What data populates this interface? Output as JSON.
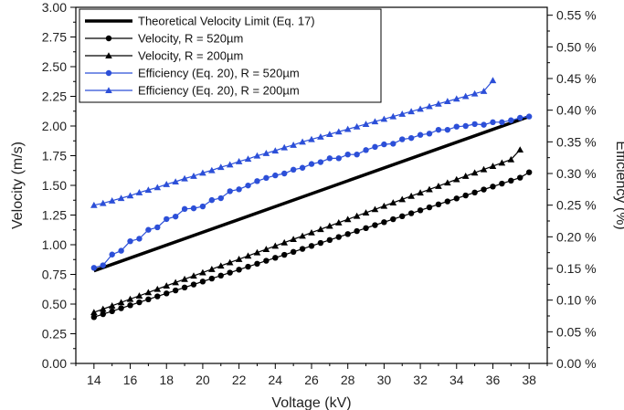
{
  "chart_data": {
    "type": "line",
    "x_axis": {
      "label": "Voltage (kV)",
      "range": [
        13,
        39
      ],
      "ticks": [
        "14",
        "16",
        "18",
        "20",
        "22",
        "24",
        "26",
        "28",
        "30",
        "32",
        "34",
        "36",
        "38"
      ]
    },
    "y_axis_left": {
      "label": "Velocity (m/s)",
      "range": [
        0,
        3.0
      ],
      "ticks": [
        "0.00",
        "0.25",
        "0.50",
        "0.75",
        "1.00",
        "1.25",
        "1.50",
        "1.75",
        "2.00",
        "2.25",
        "2.50",
        "2.75",
        "3.00"
      ]
    },
    "y_axis_right": {
      "label": "Efficiency (%)",
      "range": [
        0,
        0.5625
      ],
      "ticks": [
        "0.00 %",
        "0.05 %",
        "0.10 %",
        "0.15 %",
        "0.20 %",
        "0.25 %",
        "0.30 %",
        "0.35 %",
        "0.40 %",
        "0.45 %",
        "0.50 %",
        "0.55 %"
      ]
    },
    "grid": false,
    "legend": {
      "placement": "top-left",
      "entries": [
        "Theoretical Velocity Limit (Eq. 17)",
        "Velocity, R = 520µm",
        "Velocity, R = 200µm",
        "Efficiency (Eq. 20), R = 520µm",
        "Efficiency (Eq. 20), R = 200µm"
      ]
    },
    "series": [
      {
        "name": "Theoretical Velocity Limit (Eq. 17)",
        "axis": "left",
        "color": "#000000",
        "marker": "none",
        "x": [
          14,
          38
        ],
        "y": [
          0.78,
          2.08
        ]
      },
      {
        "name": "Velocity, R = 520µm",
        "axis": "left",
        "color": "#000000",
        "marker": "circle",
        "x": [
          14,
          14.5,
          15,
          15.5,
          16,
          16.5,
          17,
          17.5,
          18,
          18.5,
          19,
          19.5,
          20,
          20.5,
          21,
          21.5,
          22,
          22.5,
          23,
          23.5,
          24,
          24.5,
          25,
          25.5,
          26,
          26.5,
          27,
          27.5,
          28,
          28.5,
          29,
          29.5,
          30,
          30.5,
          31,
          31.5,
          32,
          32.5,
          33,
          33.5,
          34,
          34.5,
          35,
          35.5,
          36,
          36.5,
          37,
          37.5,
          38
        ],
        "y": [
          0.39,
          0.415,
          0.44,
          0.465,
          0.49,
          0.515,
          0.54,
          0.565,
          0.59,
          0.615,
          0.64,
          0.665,
          0.69,
          0.715,
          0.74,
          0.765,
          0.79,
          0.815,
          0.84,
          0.865,
          0.89,
          0.915,
          0.94,
          0.965,
          0.99,
          1.015,
          1.04,
          1.065,
          1.09,
          1.115,
          1.14,
          1.165,
          1.19,
          1.215,
          1.24,
          1.265,
          1.29,
          1.315,
          1.34,
          1.365,
          1.39,
          1.415,
          1.44,
          1.465,
          1.49,
          1.515,
          1.54,
          1.565,
          1.61
        ]
      },
      {
        "name": "Velocity, R = 200µm",
        "axis": "left",
        "color": "#000000",
        "marker": "triangle",
        "x": [
          14,
          14.5,
          15,
          15.5,
          16,
          16.5,
          17,
          17.5,
          18,
          18.5,
          19,
          19.5,
          20,
          20.5,
          21,
          21.5,
          22,
          22.5,
          23,
          23.5,
          24,
          24.5,
          25,
          25.5,
          26,
          26.5,
          27,
          27.5,
          28,
          28.5,
          29,
          29.5,
          30,
          30.5,
          31,
          31.5,
          32,
          32.5,
          33,
          33.5,
          34,
          34.5,
          35,
          35.5,
          36,
          36.5,
          37,
          37.5
        ],
        "y": [
          0.43,
          0.458,
          0.486,
          0.514,
          0.542,
          0.57,
          0.598,
          0.626,
          0.654,
          0.682,
          0.71,
          0.738,
          0.766,
          0.794,
          0.822,
          0.85,
          0.878,
          0.906,
          0.934,
          0.962,
          0.99,
          1.018,
          1.046,
          1.074,
          1.102,
          1.13,
          1.158,
          1.186,
          1.214,
          1.242,
          1.27,
          1.298,
          1.326,
          1.354,
          1.382,
          1.41,
          1.438,
          1.466,
          1.494,
          1.522,
          1.55,
          1.578,
          1.606,
          1.634,
          1.662,
          1.69,
          1.718,
          1.8
        ]
      },
      {
        "name": "Efficiency (Eq. 20), R = 520µm",
        "axis": "right",
        "color": "#2c4fd8",
        "marker": "circle",
        "x": [
          14,
          14.5,
          15,
          15.5,
          16,
          16.5,
          17,
          17.5,
          18,
          18.5,
          19,
          19.5,
          20,
          20.5,
          21,
          21.5,
          22,
          22.5,
          23,
          23.5,
          24,
          24.5,
          25,
          25.5,
          26,
          26.5,
          27,
          27.5,
          28,
          28.5,
          29,
          29.5,
          30,
          30.5,
          31,
          31.5,
          32,
          32.5,
          33,
          33.5,
          34,
          34.5,
          35,
          35.5,
          36,
          36.5,
          37,
          37.5,
          38
        ],
        "y": [
          0.151,
          0.155,
          0.172,
          0.178,
          0.193,
          0.197,
          0.211,
          0.215,
          0.228,
          0.232,
          0.244,
          0.245,
          0.248,
          0.258,
          0.261,
          0.272,
          0.275,
          0.281,
          0.288,
          0.293,
          0.297,
          0.3,
          0.306,
          0.309,
          0.315,
          0.318,
          0.324,
          0.324,
          0.33,
          0.33,
          0.337,
          0.342,
          0.346,
          0.347,
          0.354,
          0.356,
          0.361,
          0.363,
          0.369,
          0.369,
          0.374,
          0.375,
          0.378,
          0.377,
          0.381,
          0.381,
          0.384,
          0.388,
          0.39
        ]
      },
      {
        "name": "Efficiency (Eq. 20), R = 200µm",
        "axis": "right",
        "color": "#2c4fd8",
        "marker": "triangle",
        "x": [
          14,
          14.5,
          15,
          15.5,
          16,
          16.5,
          17,
          17.5,
          18,
          18.5,
          19,
          19.5,
          20,
          20.5,
          21,
          21.5,
          22,
          22.5,
          23,
          23.5,
          24,
          24.5,
          25,
          25.5,
          26,
          26.5,
          27,
          27.5,
          28,
          28.5,
          29,
          29.5,
          30,
          30.5,
          31,
          31.5,
          32,
          32.5,
          33,
          33.5,
          34,
          34.5,
          35,
          35.5,
          36
        ],
        "y": [
          0.25,
          0.253,
          0.257,
          0.261,
          0.265,
          0.27,
          0.274,
          0.278,
          0.283,
          0.287,
          0.292,
          0.296,
          0.301,
          0.305,
          0.31,
          0.314,
          0.319,
          0.323,
          0.328,
          0.332,
          0.336,
          0.341,
          0.345,
          0.35,
          0.354,
          0.358,
          0.362,
          0.366,
          0.37,
          0.374,
          0.378,
          0.382,
          0.386,
          0.39,
          0.394,
          0.398,
          0.402,
          0.406,
          0.41,
          0.414,
          0.418,
          0.422,
          0.426,
          0.43,
          0.447
        ]
      }
    ]
  }
}
